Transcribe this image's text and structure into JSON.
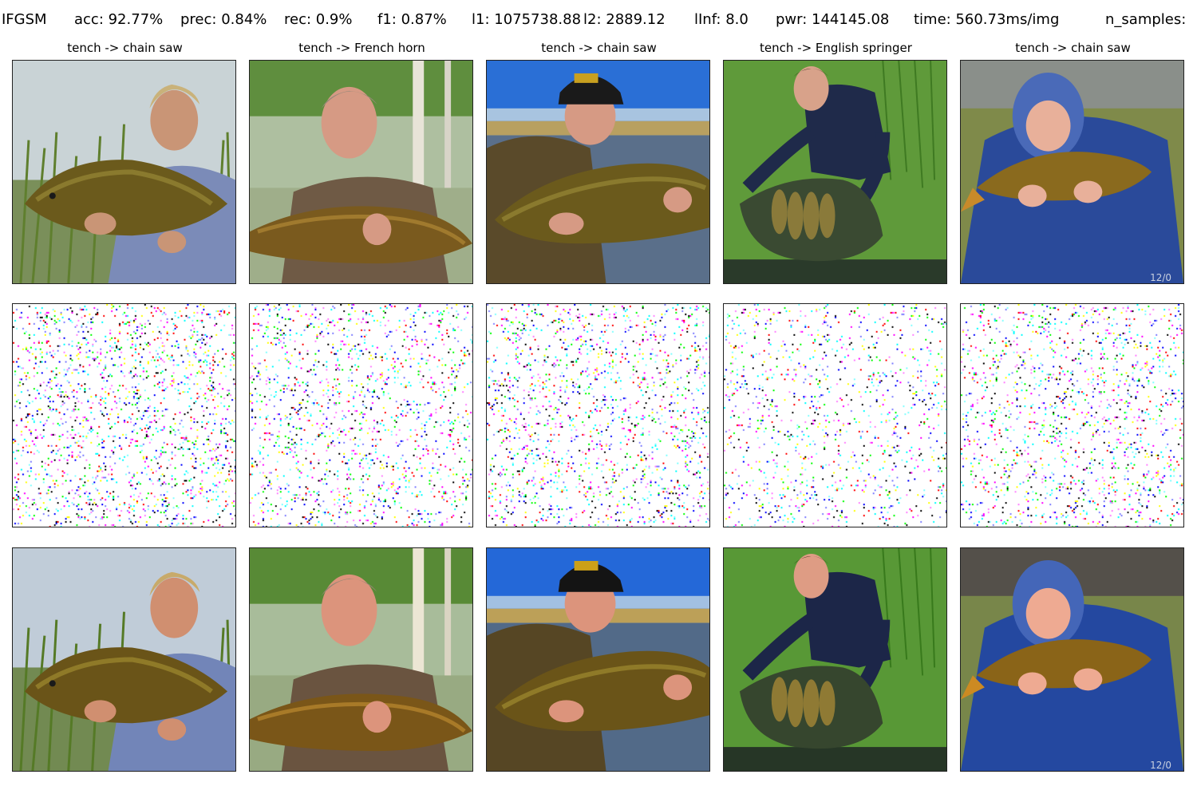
{
  "header": {
    "method": "IFGSM",
    "acc": "acc: 92.77%",
    "prec": "prec: 0.84%",
    "rec": "rec: 0.9%",
    "f1": "f1: 0.87%",
    "l1": "l1: 1075738.88",
    "l2": "l2: 2889.12",
    "linf": "lInf: 8.0",
    "pwr": "pwr: 144145.08",
    "time": "time: 560.73ms/img",
    "n_samples": "n_samples:"
  },
  "columns": [
    {
      "title": "tench -> chain saw"
    },
    {
      "title": "tench -> French horn"
    },
    {
      "title": "tench -> chain saw"
    },
    {
      "title": "tench -> English springer"
    },
    {
      "title": "tench -> chain saw"
    }
  ],
  "rows": [
    "original-image",
    "perturbation",
    "adversarial-image"
  ],
  "noise_colors": [
    "#ff00ff",
    "#00ffff",
    "#ffff00",
    "#0000ff",
    "#00ff00",
    "#ff0000",
    "#000000",
    "#8080ff",
    "#ff80ff",
    "#80ffff"
  ],
  "timestamp_overlay": "12/0"
}
